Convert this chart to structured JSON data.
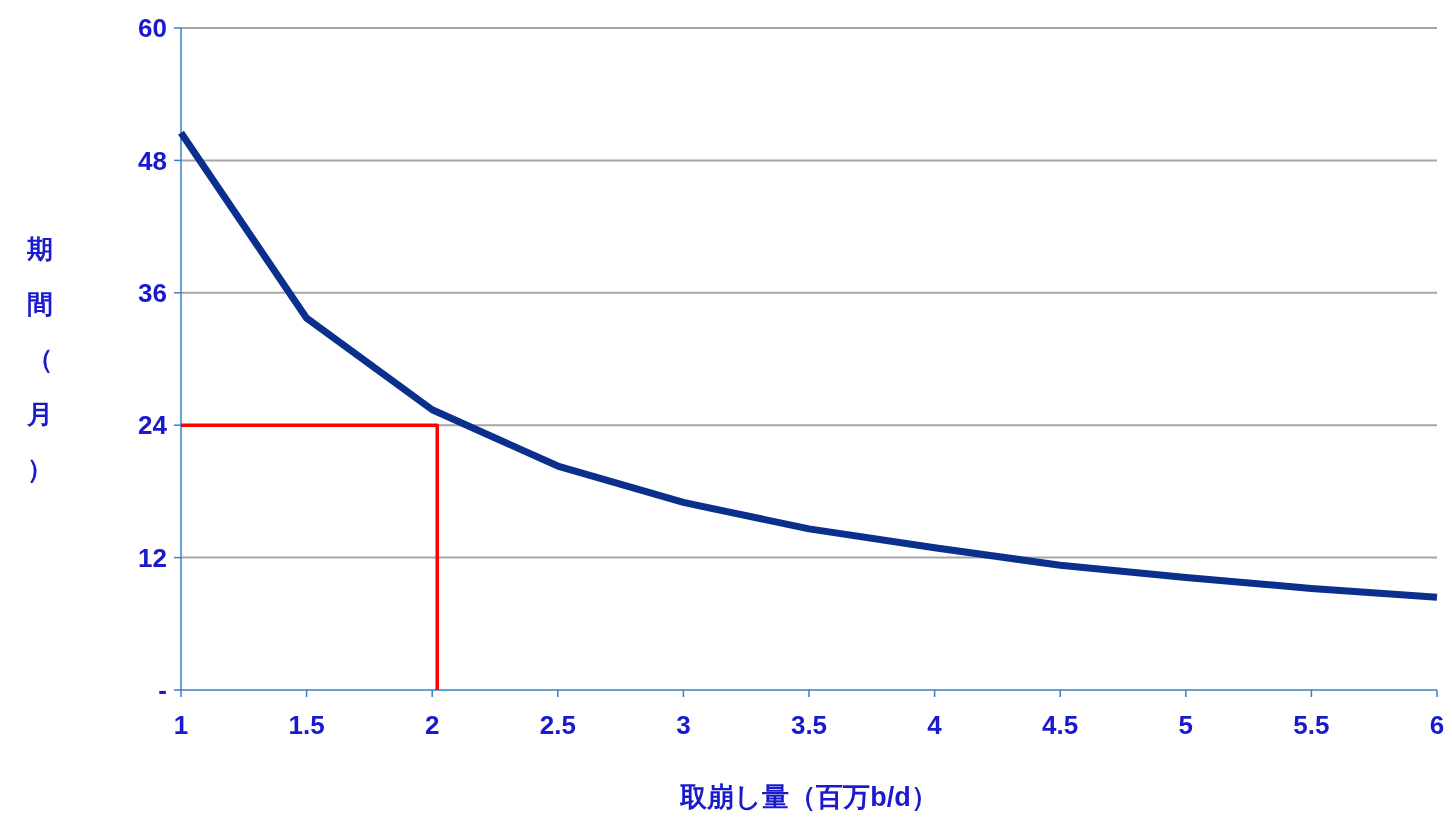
{
  "chart_data": {
    "type": "line",
    "xlabel": "取崩し量（百万b/d）",
    "ylabel": "期間（月）",
    "xlim": [
      1,
      6
    ],
    "xticks": [
      1,
      1.5,
      2,
      2.5,
      3,
      3.5,
      4,
      4.5,
      5,
      5.5,
      6
    ],
    "ylim": [
      0,
      60
    ],
    "yticks": [
      {
        "value": 0,
        "label": "-"
      },
      12,
      24,
      36,
      48,
      60
    ],
    "grid": "y",
    "series": [
      {
        "color": "#0a2f8c",
        "x": [
          1,
          1.5,
          2,
          2.5,
          3,
          3.5,
          4,
          4.5,
          5,
          5.5,
          6
        ],
        "values": [
          50.5,
          33.7,
          25.4,
          20.3,
          17.0,
          14.6,
          12.9,
          11.3,
          10.2,
          9.2,
          8.4
        ]
      },
      {
        "color": "#ff0000",
        "x": [
          1,
          2.02,
          2.02
        ],
        "values": [
          24,
          24,
          0
        ]
      }
    ]
  }
}
